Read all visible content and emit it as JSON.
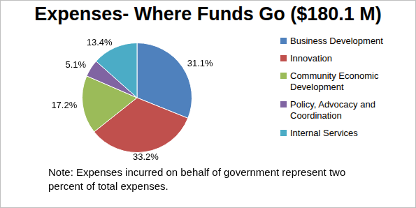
{
  "chart_data": {
    "type": "pie",
    "title": "Expenses- Where Funds Go ($180.1 M)",
    "categories": [
      "Business Development",
      "Innovation",
      "Community Economic Development",
      "Policy, Advocacy and Coordination",
      "Internal Services"
    ],
    "values": [
      31.1,
      33.2,
      17.2,
      5.1,
      13.4
    ],
    "value_labels": [
      "31.1%",
      "33.2%",
      "17.2%",
      "5.1%",
      "13.4%"
    ],
    "colors": [
      "#4f81bd",
      "#c0504d",
      "#9bbb59",
      "#8064a2",
      "#4bacc6"
    ],
    "data_labels": true,
    "legend": "right",
    "note": "Note:  Expenses incurred on behalf of government represent two percent of total expenses."
  }
}
